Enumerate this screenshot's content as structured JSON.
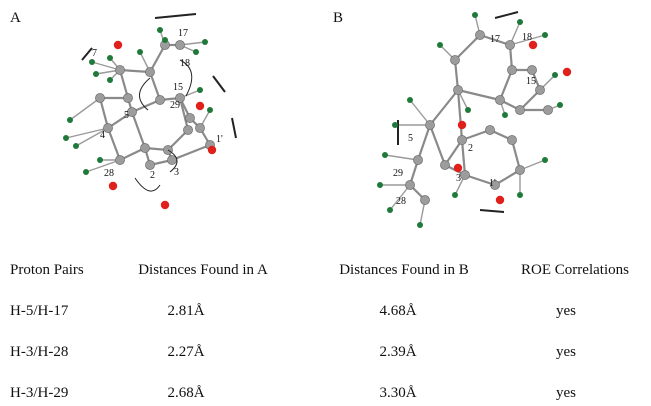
{
  "panels": [
    {
      "label": "A",
      "atoms": [
        "17",
        "7",
        "18",
        "15",
        "5",
        "29",
        "4",
        "1'",
        "28",
        "2",
        "3"
      ]
    },
    {
      "label": "B",
      "atoms": [
        "17",
        "18",
        "15",
        "5",
        "2",
        "29",
        "3",
        "28",
        "1'"
      ]
    }
  ],
  "table": {
    "header": [
      "Proton Pairs",
      "Distances Found in A",
      "Distances Found in B",
      "ROE Correlations"
    ],
    "rows": [
      [
        "H-5/H-17",
        "2.81Å",
        "4.68Å",
        "yes"
      ],
      [
        "H-3/H-28",
        "2.27Å",
        "2.39Å",
        "yes"
      ],
      [
        "H-3/H-29",
        "2.68Å",
        "3.30Å",
        "yes"
      ]
    ]
  }
}
